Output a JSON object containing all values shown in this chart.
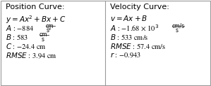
{
  "title_left": "Position Curve:",
  "title_right": "Velocity Curve:",
  "bg_color": "#ffffff",
  "border_color": "#999999",
  "text_color": "#000000",
  "font_size": 7.5,
  "title_font_size": 8.0,
  "minus": "−",
  "times": "×",
  "sup2": "²"
}
